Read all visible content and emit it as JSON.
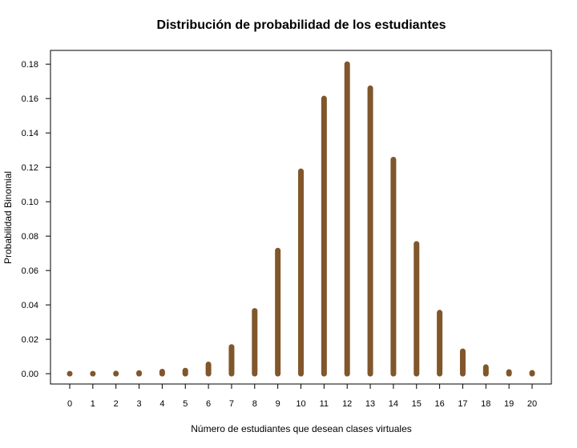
{
  "chart_data": {
    "type": "bar",
    "title": "Distribución de probabilidad de los estudiantes",
    "xlabel": "Número de estudiantes que desean clases virtuales",
    "ylabel": "Probabilidad Binomial",
    "categories": [
      "0",
      "1",
      "2",
      "3",
      "4",
      "5",
      "6",
      "7",
      "8",
      "9",
      "10",
      "11",
      "12",
      "13",
      "14",
      "15",
      "16",
      "17",
      "18",
      "19",
      "20"
    ],
    "values": [
      0.0,
      0.0,
      0.0001,
      0.0004,
      0.0012,
      0.0018,
      0.0054,
      0.0155,
      0.0365,
      0.0716,
      0.1177,
      0.16,
      0.18,
      0.166,
      0.1245,
      0.0755,
      0.0355,
      0.013,
      0.0038,
      0.001,
      0.0005
    ],
    "ylim": [
      -0.006,
      0.188
    ],
    "yticks": [
      "0.00",
      "0.02",
      "0.04",
      "0.06",
      "0.08",
      "0.10",
      "0.12",
      "0.14",
      "0.16",
      "0.18"
    ],
    "grid": false,
    "colors": {
      "bar": "#80562b",
      "axis": "#000000",
      "text": "#000000"
    }
  }
}
